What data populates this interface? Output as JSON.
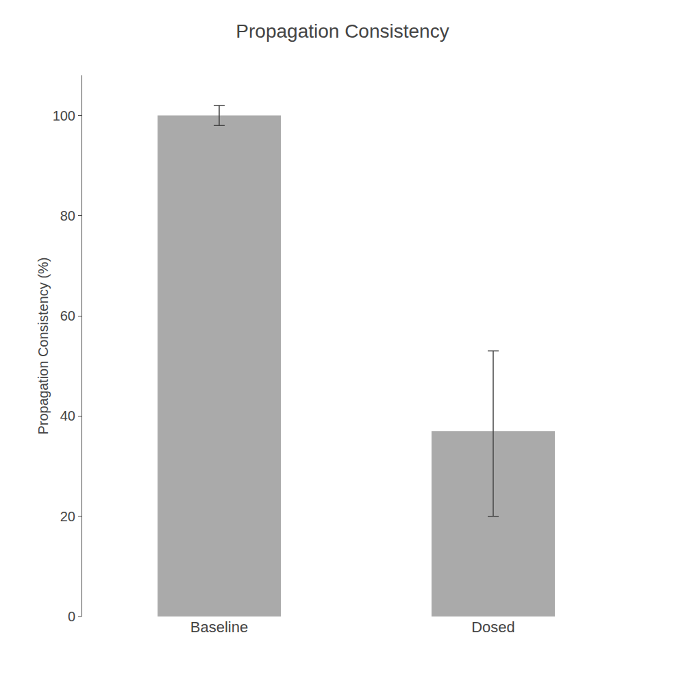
{
  "chart_data": {
    "type": "bar",
    "title": "Propagation Consistency",
    "ylabel": "Propagation Consistency (%)",
    "categories": [
      "Baseline",
      "Dosed"
    ],
    "values": [
      100,
      37
    ],
    "errors_up": [
      2,
      16
    ],
    "errors_down": [
      2,
      17
    ],
    "color": "#aaaaaa",
    "ylim": [
      0,
      108
    ],
    "yticks": [
      0,
      20,
      40,
      60,
      80,
      100
    ],
    "grid": false
  }
}
